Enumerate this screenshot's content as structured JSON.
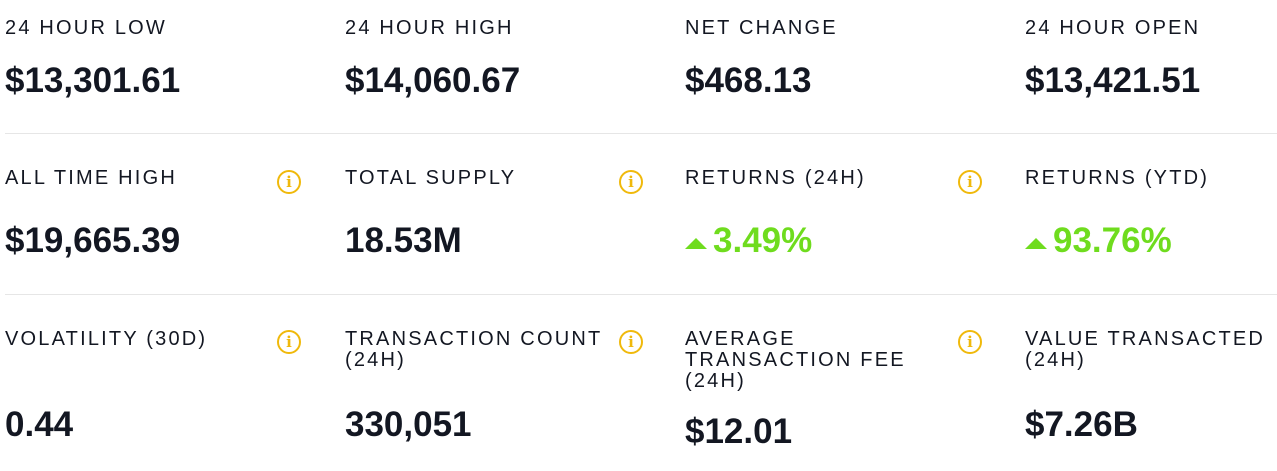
{
  "stats": {
    "low_24h": {
      "label": "24 HOUR LOW",
      "value": "$13,301.61"
    },
    "high_24h": {
      "label": "24 HOUR HIGH",
      "value": "$14,060.67"
    },
    "net_change": {
      "label": "NET CHANGE",
      "value": "$468.13"
    },
    "open_24h": {
      "label": "24 HOUR OPEN",
      "value": "$13,421.51"
    },
    "all_time_high": {
      "label": "ALL TIME HIGH",
      "value": "$19,665.39"
    },
    "total_supply": {
      "label": "TOTAL SUPPLY",
      "value": "18.53M"
    },
    "returns_24h": {
      "label": "RETURNS (24H)",
      "value": "3.49%",
      "direction": "up"
    },
    "returns_ytd": {
      "label": "RETURNS (YTD)",
      "value": "93.76%",
      "direction": "up"
    },
    "volatility_30d": {
      "label": "VOLATILITY (30D)",
      "value": "0.44"
    },
    "tx_count_24h": {
      "label": "TRANSACTION COUNT (24H)",
      "value": "330,051"
    },
    "avg_tx_fee_24h": {
      "label": "AVERAGE TRANSACTION FEE (24H)",
      "value": "$12.01"
    },
    "value_tx_24h": {
      "label": "VALUE TRANSACTED (24H)",
      "value": "$7.26B"
    }
  },
  "icons": {
    "info": "info-circle-icon",
    "up": "triangle-up-icon"
  },
  "colors": {
    "text": "#131722",
    "positive": "#6fdc1e",
    "info": "#f0b90b",
    "divider": "#e6e6e6"
  }
}
